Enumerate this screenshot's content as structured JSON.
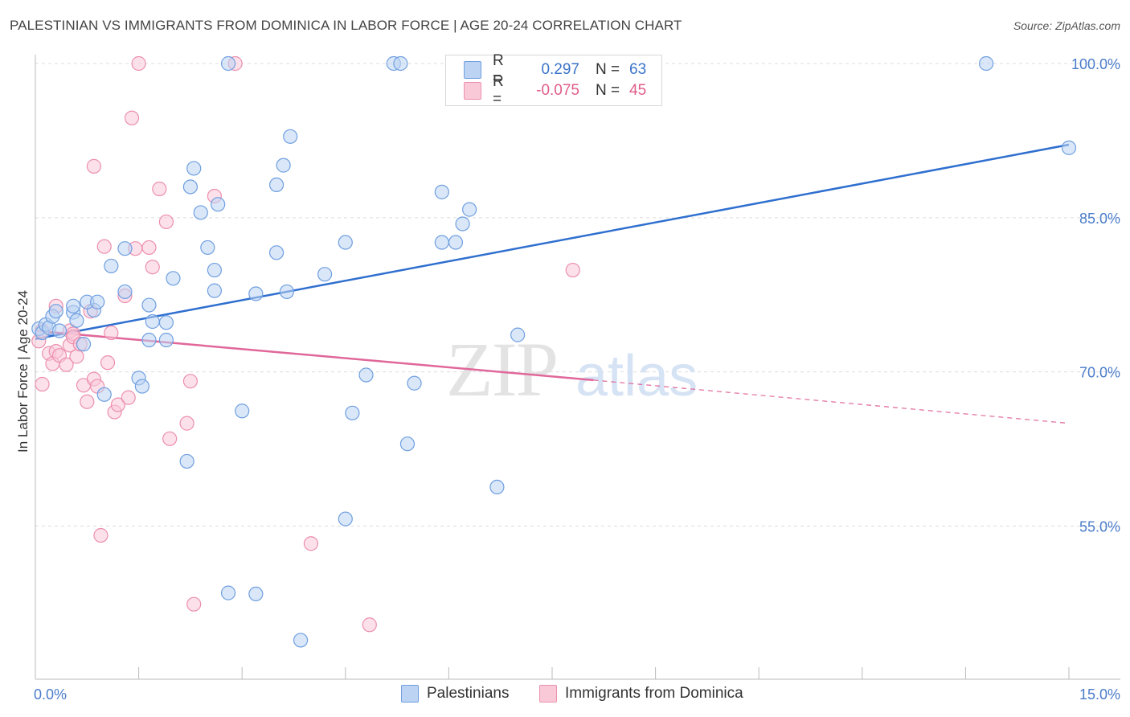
{
  "header": {
    "title": "PALESTINIAN VS IMMIGRANTS FROM DOMINICA IN LABOR FORCE | AGE 20-24 CORRELATION CHART",
    "source": "Source: ZipAtlas.com"
  },
  "watermark": {
    "zip": "ZIP",
    "atlas": "atlas"
  },
  "legend": {
    "blue": {
      "r_label": "R =",
      "r_value": "0.297",
      "n_label": "N =",
      "n_value": "63"
    },
    "pink": {
      "r_label": "R =",
      "r_value": "-0.075",
      "n_label": "N =",
      "n_value": "45"
    }
  },
  "bottom_legend": {
    "palestinians": "Palestinians",
    "dominica": "Immigrants from Dominica"
  },
  "colors": {
    "blue_stroke": "#6f9fe0",
    "blue_fill": "#bcd3f3",
    "blue_line": "#2f6fcf",
    "pink_stroke": "#ec8fae",
    "pink_fill": "#f9c9d8",
    "pink_line": "#e0679a",
    "tick_label": "#4a7cc9"
  },
  "chart_data": {
    "type": "scatter",
    "title": "PALESTINIAN VS IMMIGRANTS FROM DOMINICA IN LABOR FORCE | AGE 20-24 CORRELATION CHART",
    "xlabel": "",
    "ylabel": "In Labor Force | Age 20-24",
    "xlim": [
      0,
      15
    ],
    "ylim": [
      43,
      101
    ],
    "x_tick_labels": [
      {
        "value": 0,
        "label": "0.0%"
      },
      {
        "value": 15,
        "label": "15.0%"
      }
    ],
    "y_tick_labels": [
      {
        "value": 55,
        "label": "55.0%"
      },
      {
        "value": 70,
        "label": "70.0%"
      },
      {
        "value": 85,
        "label": "85.0%"
      },
      {
        "value": 100,
        "label": "100.0%"
      }
    ],
    "grid": true,
    "legend_position": "top-center",
    "series": [
      {
        "name": "Palestinians",
        "color": "#6f9fe0",
        "points": [
          [
            0.05,
            74.2
          ],
          [
            0.1,
            73.8
          ],
          [
            0.15,
            74.6
          ],
          [
            0.2,
            74.3
          ],
          [
            0.25,
            75.4
          ],
          [
            0.3,
            75.9
          ],
          [
            0.35,
            74.0
          ],
          [
            0.55,
            75.8
          ],
          [
            0.6,
            75.0
          ],
          [
            0.7,
            72.7
          ],
          [
            0.55,
            76.4
          ],
          [
            0.85,
            76.0
          ],
          [
            0.75,
            76.8
          ],
          [
            0.9,
            76.8
          ],
          [
            1.1,
            80.3
          ],
          [
            1.3,
            82.0
          ],
          [
            1.3,
            77.8
          ],
          [
            1.0,
            67.8
          ],
          [
            1.5,
            69.4
          ],
          [
            1.55,
            68.6
          ],
          [
            1.65,
            76.5
          ],
          [
            1.7,
            74.9
          ],
          [
            1.65,
            73.1
          ],
          [
            1.9,
            74.8
          ],
          [
            1.9,
            73.1
          ],
          [
            2.0,
            79.1
          ],
          [
            2.2,
            61.3
          ],
          [
            2.3,
            89.8
          ],
          [
            2.25,
            88.0
          ],
          [
            2.4,
            85.5
          ],
          [
            2.5,
            82.1
          ],
          [
            2.6,
            79.9
          ],
          [
            2.6,
            77.9
          ],
          [
            2.65,
            86.3
          ],
          [
            2.8,
            100.0
          ],
          [
            2.8,
            48.5
          ],
          [
            3.0,
            66.2
          ],
          [
            3.2,
            48.4
          ],
          [
            3.2,
            77.6
          ],
          [
            3.5,
            81.6
          ],
          [
            3.5,
            88.2
          ],
          [
            3.6,
            90.1
          ],
          [
            3.65,
            77.8
          ],
          [
            3.7,
            92.9
          ],
          [
            3.85,
            43.9
          ],
          [
            4.2,
            79.5
          ],
          [
            4.5,
            55.7
          ],
          [
            4.5,
            82.6
          ],
          [
            4.6,
            66.0
          ],
          [
            4.8,
            69.7
          ],
          [
            5.2,
            100.0
          ],
          [
            5.3,
            100.0
          ],
          [
            5.4,
            63.0
          ],
          [
            5.5,
            68.9
          ],
          [
            5.9,
            87.5
          ],
          [
            5.9,
            82.6
          ],
          [
            6.1,
            82.6
          ],
          [
            6.2,
            84.4
          ],
          [
            6.3,
            85.8
          ],
          [
            6.7,
            58.8
          ],
          [
            7.0,
            73.6
          ],
          [
            13.8,
            100.0
          ],
          [
            15.0,
            91.8
          ]
        ],
        "trend": {
          "x": [
            0,
            15
          ],
          "y": [
            73.2,
            92.1
          ]
        }
      },
      {
        "name": "Immigrants from Dominica",
        "color": "#ec8fae",
        "points": [
          [
            0.05,
            73.0
          ],
          [
            0.1,
            74.0
          ],
          [
            0.1,
            68.8
          ],
          [
            0.2,
            71.8
          ],
          [
            0.25,
            70.8
          ],
          [
            0.3,
            72.0
          ],
          [
            0.35,
            71.6
          ],
          [
            0.3,
            76.4
          ],
          [
            0.45,
            70.7
          ],
          [
            0.5,
            72.6
          ],
          [
            0.5,
            74.0
          ],
          [
            0.55,
            73.7
          ],
          [
            0.55,
            73.4
          ],
          [
            0.6,
            71.5
          ],
          [
            0.65,
            72.7
          ],
          [
            0.7,
            68.7
          ],
          [
            0.75,
            67.1
          ],
          [
            0.8,
            75.9
          ],
          [
            0.85,
            69.3
          ],
          [
            0.9,
            68.6
          ],
          [
            0.85,
            90.0
          ],
          [
            0.95,
            54.1
          ],
          [
            1.0,
            82.2
          ],
          [
            1.05,
            70.9
          ],
          [
            1.1,
            73.8
          ],
          [
            1.15,
            66.1
          ],
          [
            1.2,
            66.8
          ],
          [
            1.3,
            77.4
          ],
          [
            1.35,
            67.5
          ],
          [
            1.4,
            94.7
          ],
          [
            1.45,
            82.0
          ],
          [
            1.5,
            100.0
          ],
          [
            1.65,
            82.1
          ],
          [
            1.7,
            80.2
          ],
          [
            1.8,
            87.8
          ],
          [
            1.9,
            84.6
          ],
          [
            1.95,
            63.5
          ],
          [
            2.2,
            65.0
          ],
          [
            2.25,
            69.1
          ],
          [
            2.3,
            47.4
          ],
          [
            2.6,
            87.1
          ],
          [
            2.9,
            100.0
          ],
          [
            4.0,
            53.3
          ],
          [
            4.85,
            45.4
          ],
          [
            7.8,
            79.9
          ]
        ],
        "trend": {
          "x": [
            0,
            8.1
          ],
          "y": [
            74.0,
            69.2
          ]
        },
        "trend_dashed": {
          "x": [
            8.1,
            15
          ],
          "y": [
            69.2,
            65.0
          ]
        }
      }
    ]
  }
}
